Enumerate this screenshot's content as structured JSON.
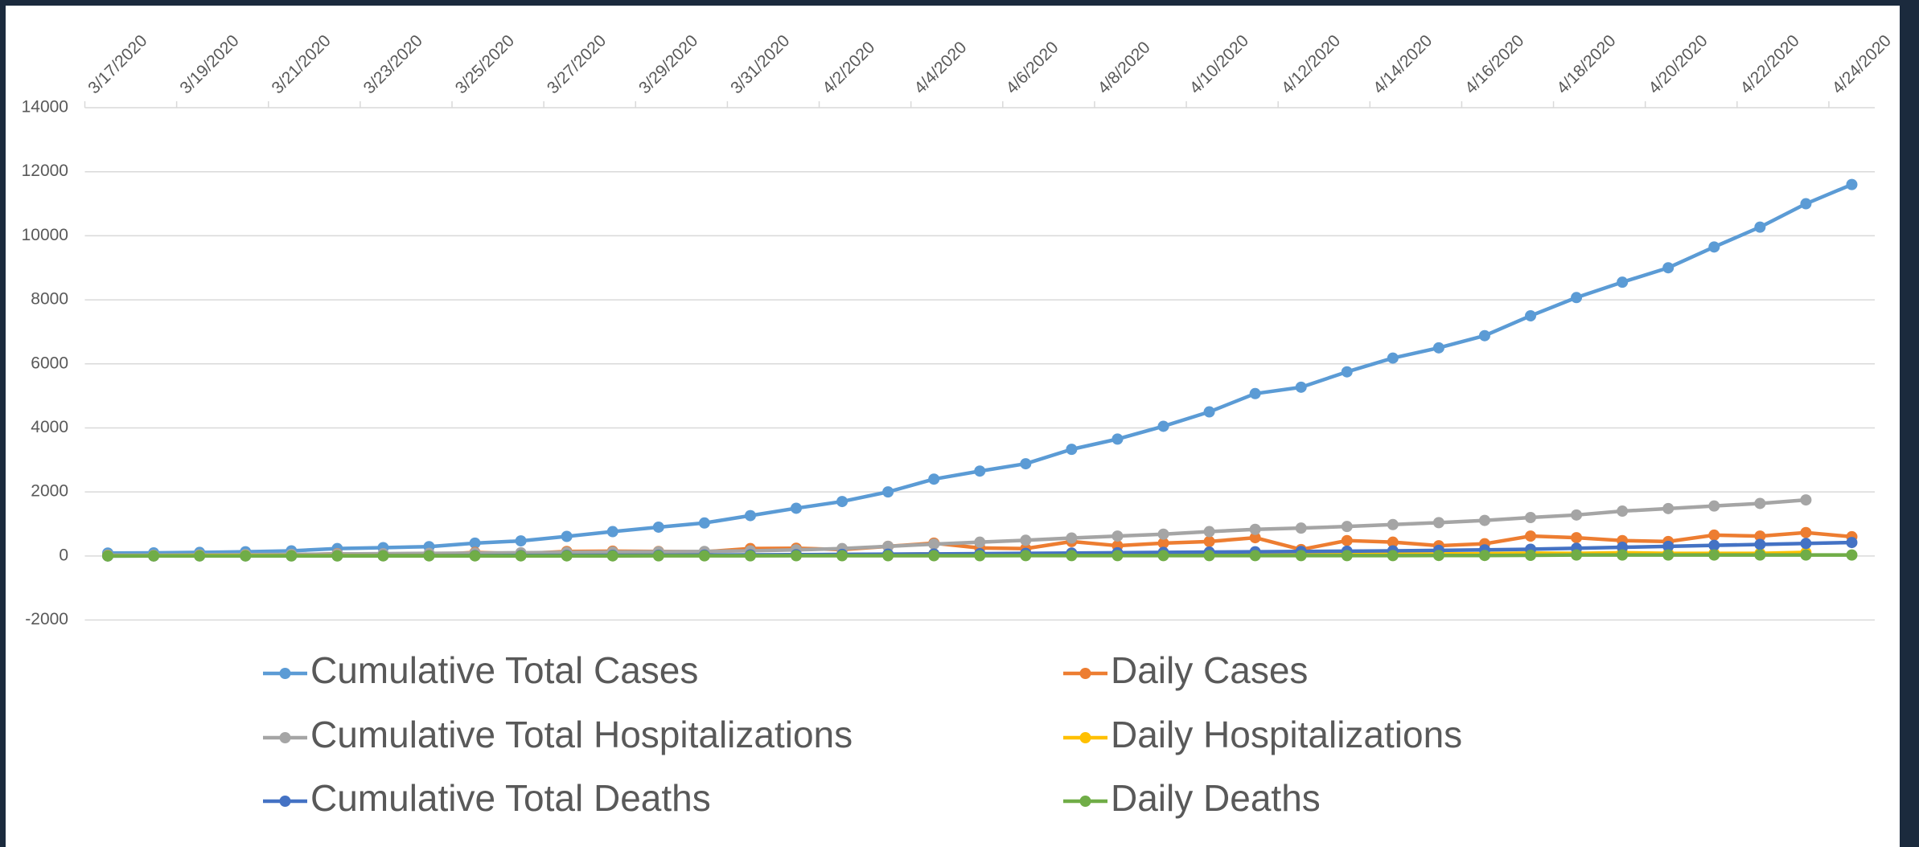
{
  "chart_data": {
    "type": "line",
    "categories": [
      "3/17/2020",
      null,
      "3/19/2020",
      null,
      "3/21/2020",
      null,
      "3/23/2020",
      null,
      "3/25/2020",
      null,
      "3/27/2020",
      null,
      "3/29/2020",
      null,
      "3/31/2020",
      null,
      "4/2/2020",
      null,
      "4/4/2020",
      null,
      "4/6/2020",
      null,
      "4/8/2020",
      null,
      "4/10/2020",
      null,
      "4/12/2020",
      null,
      "4/14/2020",
      null,
      "4/16/2020",
      null,
      "4/18/2020",
      null,
      "4/20/2020",
      null,
      "4/22/2020",
      null,
      "4/24/2020"
    ],
    "series": [
      {
        "name": "Cumulative Total Cases",
        "color": "#5b9bd5",
        "values": [
          90,
          95,
          110,
          130,
          160,
          230,
          260,
          290,
          400,
          470,
          610,
          760,
          900,
          1030,
          1260,
          1490,
          1700,
          2000,
          2400,
          2650,
          2880,
          3330,
          3650,
          4050,
          4500,
          5070,
          5270,
          5750,
          6180,
          6500,
          6880,
          7500,
          8070,
          8550,
          9000,
          9650,
          10270,
          11000,
          11600
        ]
      },
      {
        "name": "Daily Cases",
        "color": "#ed7d31",
        "values": [
          20,
          5,
          15,
          20,
          30,
          70,
          30,
          30,
          110,
          70,
          140,
          150,
          140,
          130,
          230,
          240,
          200,
          300,
          400,
          250,
          230,
          450,
          320,
          400,
          450,
          570,
          200,
          480,
          430,
          320,
          380,
          620,
          570,
          480,
          450,
          650,
          620,
          730,
          600
        ]
      },
      {
        "name": "Cumulative Total Hospitalizations",
        "color": "#a5a5a5",
        "values": [
          20,
          25,
          30,
          40,
          50,
          60,
          70,
          80,
          90,
          100,
          110,
          120,
          130,
          140,
          160,
          190,
          230,
          300,
          370,
          430,
          490,
          560,
          620,
          680,
          760,
          830,
          870,
          920,
          980,
          1040,
          1110,
          1200,
          1280,
          1400,
          1480,
          1560,
          1640,
          1750,
          null
        ]
      },
      {
        "name": "Daily Hospitalizations",
        "color": "#ffc000",
        "values": [
          5,
          5,
          10,
          10,
          10,
          10,
          10,
          10,
          10,
          15,
          15,
          15,
          20,
          20,
          25,
          30,
          40,
          50,
          60,
          60,
          60,
          70,
          60,
          60,
          80,
          70,
          40,
          50,
          60,
          60,
          70,
          90,
          80,
          100,
          80,
          80,
          80,
          110,
          null
        ]
      },
      {
        "name": "Cumulative Total Deaths",
        "color": "#4472c4",
        "values": [
          0,
          1,
          2,
          3,
          4,
          5,
          7,
          9,
          11,
          14,
          17,
          20,
          24,
          28,
          33,
          40,
          48,
          55,
          62,
          70,
          80,
          90,
          100,
          110,
          120,
          130,
          140,
          150,
          160,
          175,
          190,
          210,
          240,
          270,
          300,
          330,
          360,
          390,
          420
        ]
      },
      {
        "name": "Daily Deaths",
        "color": "#70ad47",
        "values": [
          0,
          1,
          1,
          1,
          1,
          1,
          2,
          2,
          2,
          3,
          3,
          3,
          4,
          4,
          5,
          7,
          8,
          7,
          7,
          8,
          10,
          10,
          10,
          10,
          10,
          10,
          10,
          10,
          10,
          15,
          15,
          20,
          30,
          30,
          30,
          30,
          30,
          30,
          30
        ]
      }
    ],
    "ylim": [
      -2000,
      14000
    ],
    "yticks": [
      -2000,
      0,
      2000,
      4000,
      6000,
      8000,
      10000,
      12000,
      14000
    ],
    "grid": true,
    "legend": "bottom"
  }
}
